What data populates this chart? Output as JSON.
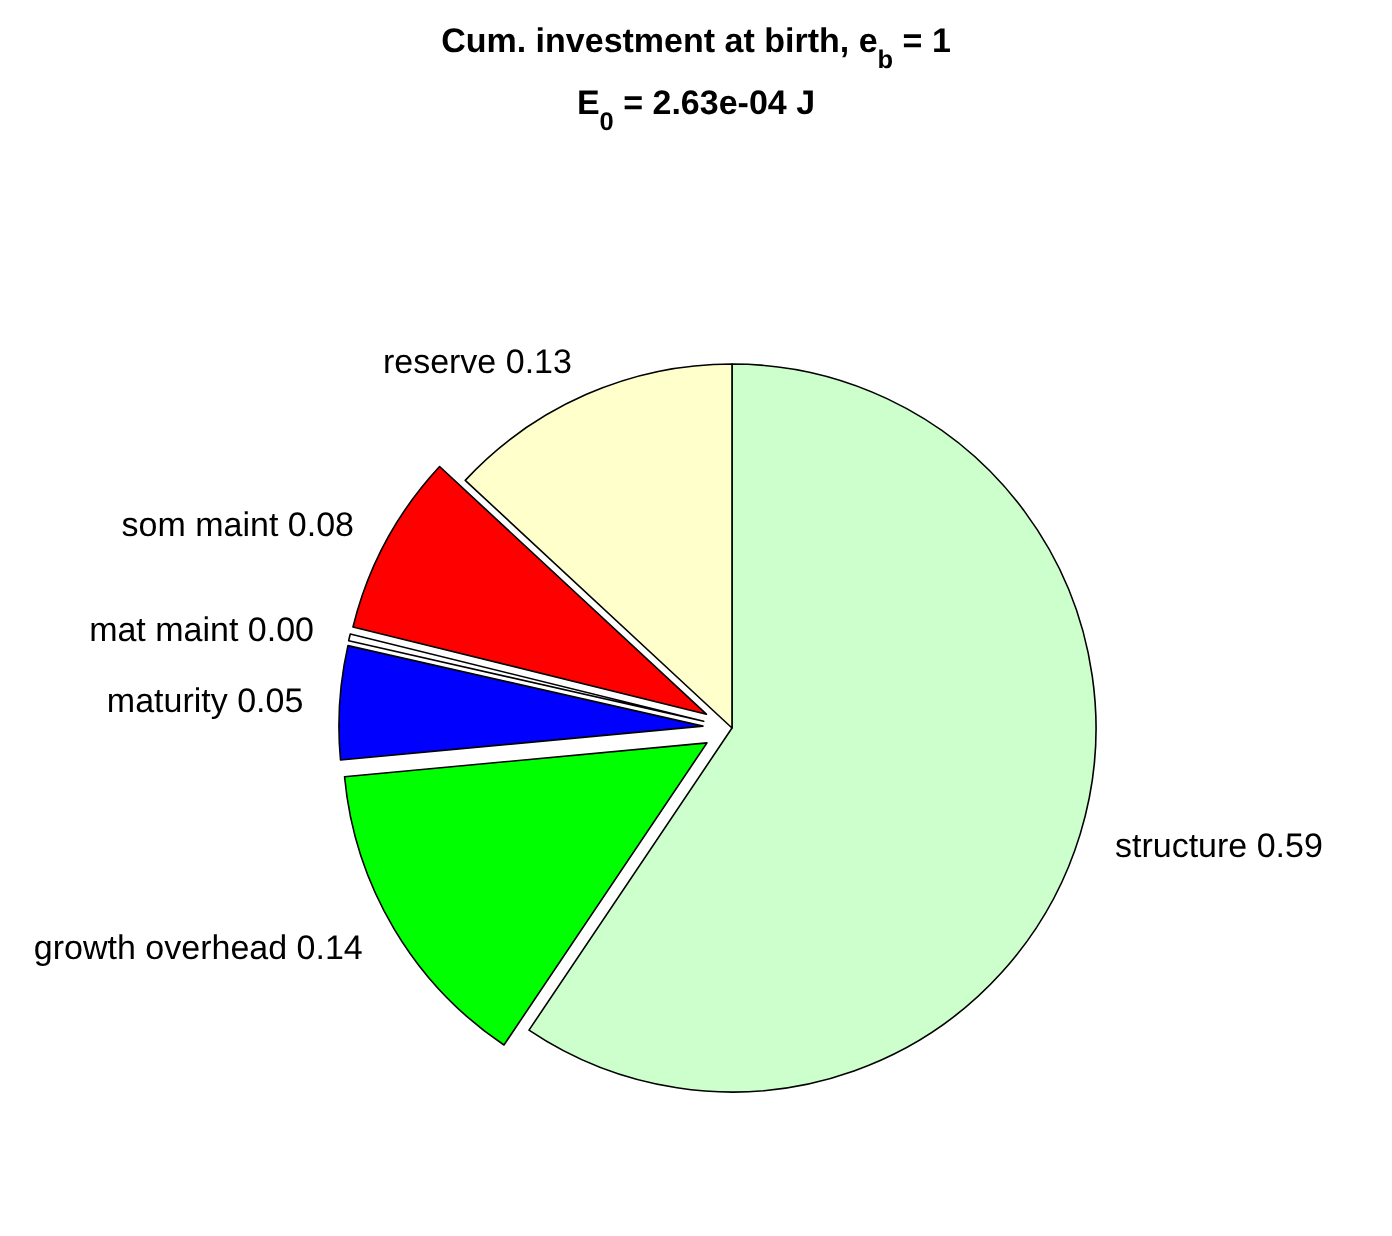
{
  "chart_data": {
    "type": "pie",
    "title": "Cum. investment at birth, e$_{b}$ = 1",
    "subtitle": "E$_{0}$ = 2.63e-04 J",
    "categories": [
      "structure",
      "growth overhead",
      "maturity",
      "mat maint",
      "som maint",
      "reserve"
    ],
    "values": [
      0.59,
      0.14,
      0.05,
      0.003,
      0.08,
      0.13
    ],
    "value_labels": [
      "0.59",
      "0.14",
      "0.05",
      "0.00",
      "0.08",
      "0.13"
    ],
    "colors": [
      "#ccffcc",
      "#00ff00",
      "#0000ff",
      "#ffffff",
      "#ff0000",
      "#ffffcc"
    ]
  }
}
